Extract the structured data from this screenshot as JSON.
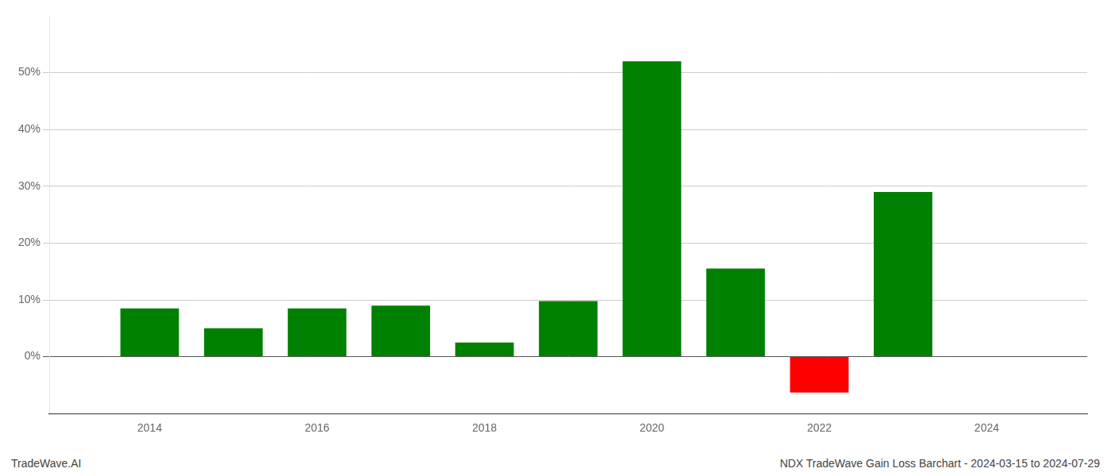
{
  "chart_data": {
    "type": "bar",
    "x": [
      2014,
      2015,
      2016,
      2017,
      2018,
      2019,
      2020,
      2021,
      2022,
      2023
    ],
    "values": [
      0.085,
      0.05,
      0.085,
      0.09,
      0.025,
      0.098,
      0.52,
      0.155,
      -0.063,
      0.29
    ],
    "colors": [
      "#008000",
      "#008000",
      "#008000",
      "#008000",
      "#008000",
      "#008000",
      "#008000",
      "#008000",
      "#ff0000",
      "#008000"
    ],
    "xlim": [
      2012.8,
      2025.2
    ],
    "xticks": [
      2014,
      2016,
      2018,
      2020,
      2022,
      2024
    ],
    "ylim": [
      -0.1,
      0.6
    ],
    "yticks": [
      {
        "value": 0,
        "label": "0%"
      },
      {
        "value": 0.1,
        "label": "10%"
      },
      {
        "value": 0.2,
        "label": "20%"
      },
      {
        "value": 0.3,
        "label": "30%"
      },
      {
        "value": 0.4,
        "label": "40%"
      },
      {
        "value": 0.5,
        "label": "50%"
      }
    ],
    "grid": true,
    "annotations": [
      "TradeWave.AI",
      "NDX TradeWave Gain Loss Barchart - 2024-03-15 to 2024-07-29"
    ]
  }
}
